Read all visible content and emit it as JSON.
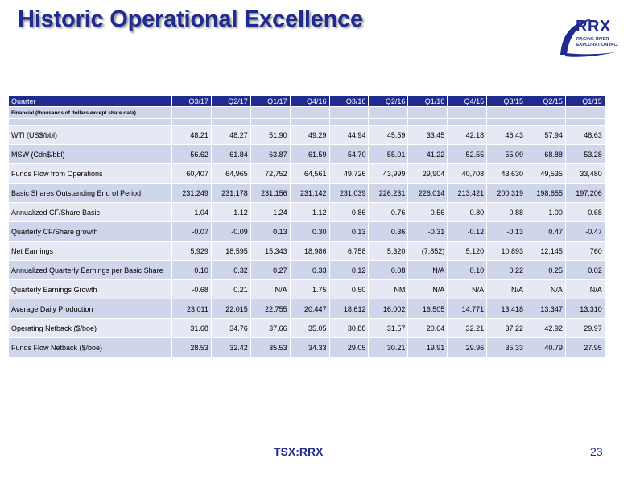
{
  "title": "Historic Operational Excellence",
  "logo": {
    "main": "RRX",
    "sub": "RAGING RIVER\nEXPLORATION INC."
  },
  "table": {
    "header_label": "Quarter",
    "columns": [
      "Q3/17",
      "Q2/17",
      "Q1/17",
      "Q4/16",
      "Q3/16",
      "Q2/16",
      "Q1/16",
      "Q4/15",
      "Q3/15",
      "Q2/15",
      "Q1/15"
    ],
    "subheader": "Financial (thousands of dollars except share data)",
    "rows": [
      {
        "label": "WTI (US$/bbl)",
        "values": [
          "48.21",
          "48.27",
          "51.90",
          "49.29",
          "44.94",
          "45.59",
          "33.45",
          "42.18",
          "46.43",
          "57.94",
          "48.63"
        ]
      },
      {
        "label": "MSW (Cdn$/bbl)",
        "values": [
          "56.62",
          "61.84",
          "63.87",
          "61.59",
          "54.70",
          "55.01",
          "41.22",
          "52.55",
          "55.09",
          "68.88",
          "53.28"
        ]
      },
      {
        "label": "Funds Flow from Operations",
        "values": [
          "60,407",
          "64,965",
          "72,752",
          "64,561",
          "49,726",
          "43,999",
          "29,904",
          "40,708",
          "43,630",
          "49,535",
          "33,480"
        ]
      },
      {
        "label": "Basic Shares Outstanding End of Period",
        "values": [
          "231,249",
          "231,178",
          "231,156",
          "231,142",
          "231,039",
          "226,231",
          "226,014",
          "213,421",
          "200,319",
          "198,655",
          "197,206"
        ]
      },
      {
        "label": "Annualized CF/Share Basic",
        "values": [
          "1.04",
          "1.12",
          "1.24",
          "1.12",
          "0.86",
          "0.76",
          "0.56",
          "0.80",
          "0.88",
          "1.00",
          "0.68"
        ]
      },
      {
        "label": "Quarterly CF/Share growth",
        "values": [
          "-0.07",
          "-0.09",
          "0.13",
          "0.30",
          "0.13",
          "0.36",
          "-0.31",
          "-0.12",
          "-0.13",
          "0.47",
          "-0.47"
        ]
      },
      {
        "label": "Net Earnings",
        "values": [
          "5,929",
          "18,595",
          "15,343",
          "18,986",
          "6,758",
          "5,320",
          "(7,852)",
          "5,120",
          "10,893",
          "12,145",
          "760"
        ]
      },
      {
        "label": "Annualized Quarterly Earnings per Basic Share",
        "values": [
          "0.10",
          "0.32",
          "0.27",
          "0.33",
          "0.12",
          "0.08",
          "N/A",
          "0.10",
          "0.22",
          "0.25",
          "0.02"
        ]
      },
      {
        "label": "Quarterly Earnings Growth",
        "values": [
          "-0.68",
          "0.21",
          "N/A",
          "1.75",
          "0.50",
          "NM",
          "N/A",
          "N/A",
          "N/A",
          "N/A",
          "N/A"
        ]
      },
      {
        "label": "Average Daily Production",
        "values": [
          "23,011",
          "22,015",
          "22,755",
          "20,447",
          "18,612",
          "16,002",
          "16,505",
          "14,771",
          "13,418",
          "13,347",
          "13,310"
        ]
      },
      {
        "label": "Operating Netback ($/boe)",
        "values": [
          "31.68",
          "34.76",
          "37.66",
          "35.05",
          "30.88",
          "31.57",
          "20.04",
          "32.21",
          "37.22",
          "42.92",
          "29.97"
        ]
      },
      {
        "label": "Funds Flow Netback ($/boe)",
        "values": [
          "28.53",
          "32.42",
          "35.53",
          "34.33",
          "29.05",
          "30.21",
          "19.91",
          "29.96",
          "35.33",
          "40.79",
          "27.95"
        ]
      }
    ]
  },
  "footer": {
    "ticker": "TSX:RRX",
    "page_number": "23"
  },
  "colors": {
    "brand": "#1f2b8f",
    "row_dark": "#cfd5ea",
    "row_light": "#e6e9f4"
  }
}
